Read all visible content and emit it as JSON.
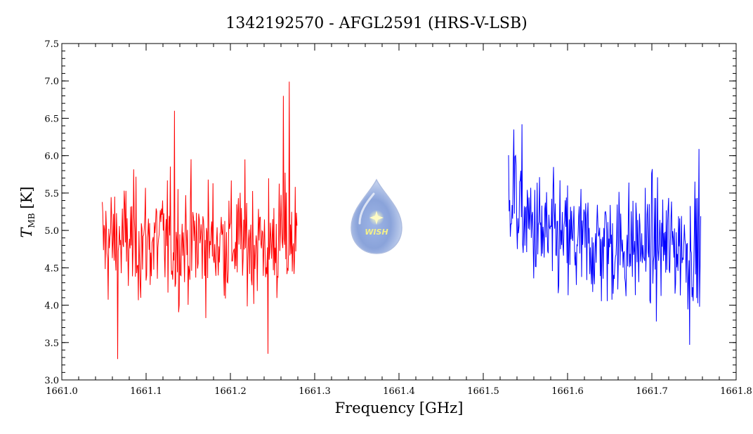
{
  "chart_data": {
    "type": "line",
    "title": "1342192570 - AFGL2591 (HRS-V-LSB)",
    "xlabel": "Frequency [GHz]",
    "ylabel_main": "T",
    "ylabel_sub": "MB",
    "ylabel_unit": "[K]",
    "xlim": [
      1661.0,
      1661.8
    ],
    "ylim": [
      3.0,
      7.5
    ],
    "xticks": [
      "1661.0",
      "1661.1",
      "1661.2",
      "1661.3",
      "1661.4",
      "1661.5",
      "1661.6",
      "1661.7",
      "1661.8"
    ],
    "yticks": [
      "3.0",
      "3.5",
      "4.0",
      "4.5",
      "5.0",
      "5.5",
      "6.0",
      "6.5",
      "7.0",
      "7.5"
    ],
    "grid": false,
    "series": [
      {
        "color": "#ff0000",
        "x_start": 1661.048,
        "x_end": 1661.279,
        "mean": 4.85,
        "noise": 0.42,
        "min": 3.28,
        "max": 6.99
      },
      {
        "color": "#0000ff",
        "x_start": 1661.53,
        "x_end": 1661.758,
        "mean": 4.8,
        "noise": 0.42,
        "min": 3.47,
        "max": 6.42
      }
    ]
  },
  "logo": {
    "text": "WISH"
  }
}
